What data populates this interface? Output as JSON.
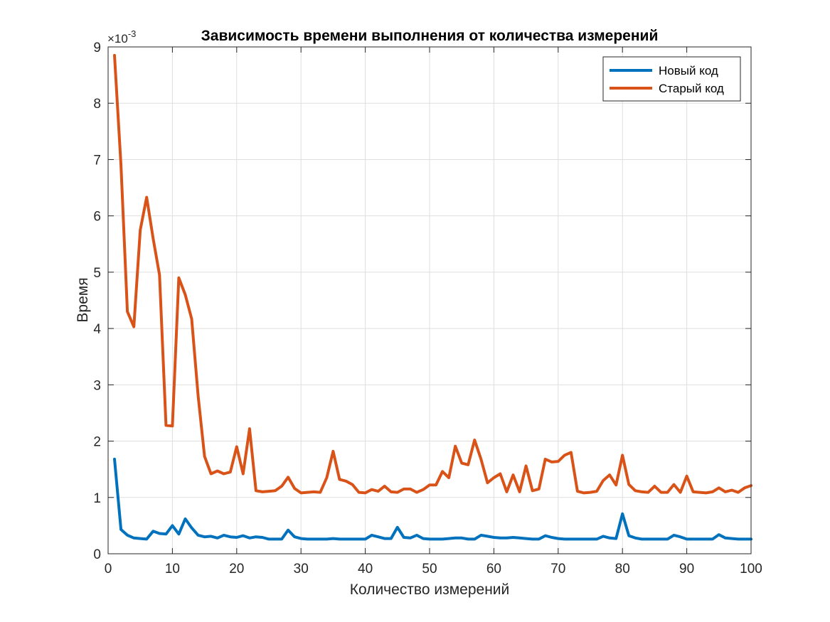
{
  "chart_data": {
    "type": "line",
    "title": "Зависимость времени выполнения от количества измерений",
    "xlabel": "Количество измерений",
    "ylabel": "Время",
    "y_exponent_label": "×10",
    "y_exponent_power": "-3",
    "xlim": [
      0,
      100
    ],
    "ylim": [
      0,
      9
    ],
    "x_ticks": [
      "0",
      "10",
      "20",
      "30",
      "40",
      "50",
      "60",
      "70",
      "80",
      "90",
      "100"
    ],
    "y_ticks": [
      "0",
      "1",
      "2",
      "3",
      "4",
      "5",
      "6",
      "7",
      "8",
      "9"
    ],
    "grid": true,
    "legend_position": "top-right",
    "x": [
      1,
      2,
      3,
      4,
      5,
      6,
      7,
      8,
      9,
      10,
      11,
      12,
      13,
      14,
      15,
      16,
      17,
      18,
      19,
      20,
      21,
      22,
      23,
      24,
      25,
      26,
      27,
      28,
      29,
      30,
      31,
      32,
      33,
      34,
      35,
      36,
      37,
      38,
      39,
      40,
      41,
      42,
      43,
      44,
      45,
      46,
      47,
      48,
      49,
      50,
      51,
      52,
      53,
      54,
      55,
      56,
      57,
      58,
      59,
      60,
      61,
      62,
      63,
      64,
      65,
      66,
      67,
      68,
      69,
      70,
      71,
      72,
      73,
      74,
      75,
      76,
      77,
      78,
      79,
      80,
      81,
      82,
      83,
      84,
      85,
      86,
      87,
      88,
      89,
      90,
      91,
      92,
      93,
      94,
      95,
      96,
      97,
      98,
      99,
      100
    ],
    "series": [
      {
        "name": "Новый код",
        "color": "#0072BD",
        "values": [
          1.68,
          0.43,
          0.33,
          0.28,
          0.27,
          0.26,
          0.4,
          0.36,
          0.35,
          0.5,
          0.35,
          0.62,
          0.46,
          0.33,
          0.3,
          0.31,
          0.28,
          0.33,
          0.3,
          0.29,
          0.32,
          0.28,
          0.3,
          0.29,
          0.26,
          0.26,
          0.26,
          0.42,
          0.3,
          0.27,
          0.26,
          0.26,
          0.26,
          0.26,
          0.27,
          0.26,
          0.26,
          0.26,
          0.26,
          0.26,
          0.33,
          0.3,
          0.27,
          0.27,
          0.47,
          0.29,
          0.28,
          0.33,
          0.27,
          0.26,
          0.26,
          0.26,
          0.27,
          0.28,
          0.28,
          0.26,
          0.26,
          0.33,
          0.31,
          0.29,
          0.28,
          0.28,
          0.29,
          0.28,
          0.27,
          0.26,
          0.26,
          0.32,
          0.29,
          0.27,
          0.26,
          0.26,
          0.26,
          0.26,
          0.26,
          0.26,
          0.31,
          0.28,
          0.27,
          0.71,
          0.32,
          0.28,
          0.26,
          0.26,
          0.26,
          0.26,
          0.26,
          0.33,
          0.3,
          0.26,
          0.26,
          0.26,
          0.26,
          0.26,
          0.34,
          0.28,
          0.27,
          0.26,
          0.26,
          0.26
        ]
      },
      {
        "name": "Старый код",
        "color": "#D95319",
        "values": [
          8.85,
          6.9,
          4.3,
          4.03,
          5.75,
          6.33,
          5.6,
          4.95,
          2.28,
          2.27,
          4.9,
          4.6,
          4.17,
          2.8,
          1.73,
          1.42,
          1.47,
          1.42,
          1.45,
          1.9,
          1.42,
          2.22,
          1.12,
          1.1,
          1.11,
          1.12,
          1.2,
          1.36,
          1.16,
          1.08,
          1.09,
          1.1,
          1.09,
          1.35,
          1.82,
          1.32,
          1.29,
          1.23,
          1.09,
          1.08,
          1.14,
          1.11,
          1.2,
          1.1,
          1.09,
          1.15,
          1.15,
          1.09,
          1.14,
          1.22,
          1.22,
          1.46,
          1.35,
          1.91,
          1.61,
          1.58,
          2.02,
          1.68,
          1.26,
          1.35,
          1.42,
          1.1,
          1.4,
          1.1,
          1.56,
          1.12,
          1.15,
          1.68,
          1.63,
          1.64,
          1.75,
          1.8,
          1.11,
          1.08,
          1.09,
          1.11,
          1.3,
          1.4,
          1.22,
          1.75,
          1.23,
          1.12,
          1.1,
          1.09,
          1.2,
          1.09,
          1.09,
          1.23,
          1.09,
          1.38,
          1.1,
          1.09,
          1.08,
          1.1,
          1.17,
          1.1,
          1.13,
          1.09,
          1.17,
          1.21
        ]
      }
    ]
  }
}
